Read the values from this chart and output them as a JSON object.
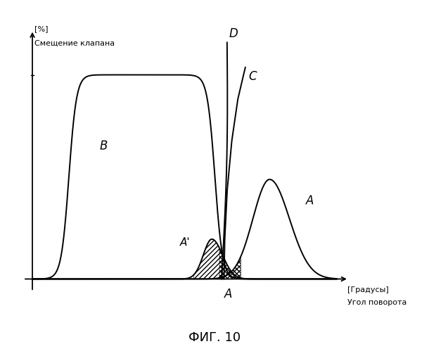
{
  "title": "ФИГ. 10",
  "ylabel_l1": "[%]",
  "ylabel_l2": "Смещение клапана",
  "xlabel_line1": "[Градусы]",
  "xlabel_line2": "Угол поворота",
  "label_B": "B",
  "label_A_curve": "A",
  "label_Aprime": "A'",
  "label_C": "C",
  "label_D": "D",
  "label_A_bottom": "A",
  "bg_color": "#ffffff",
  "line_color": "#000000"
}
